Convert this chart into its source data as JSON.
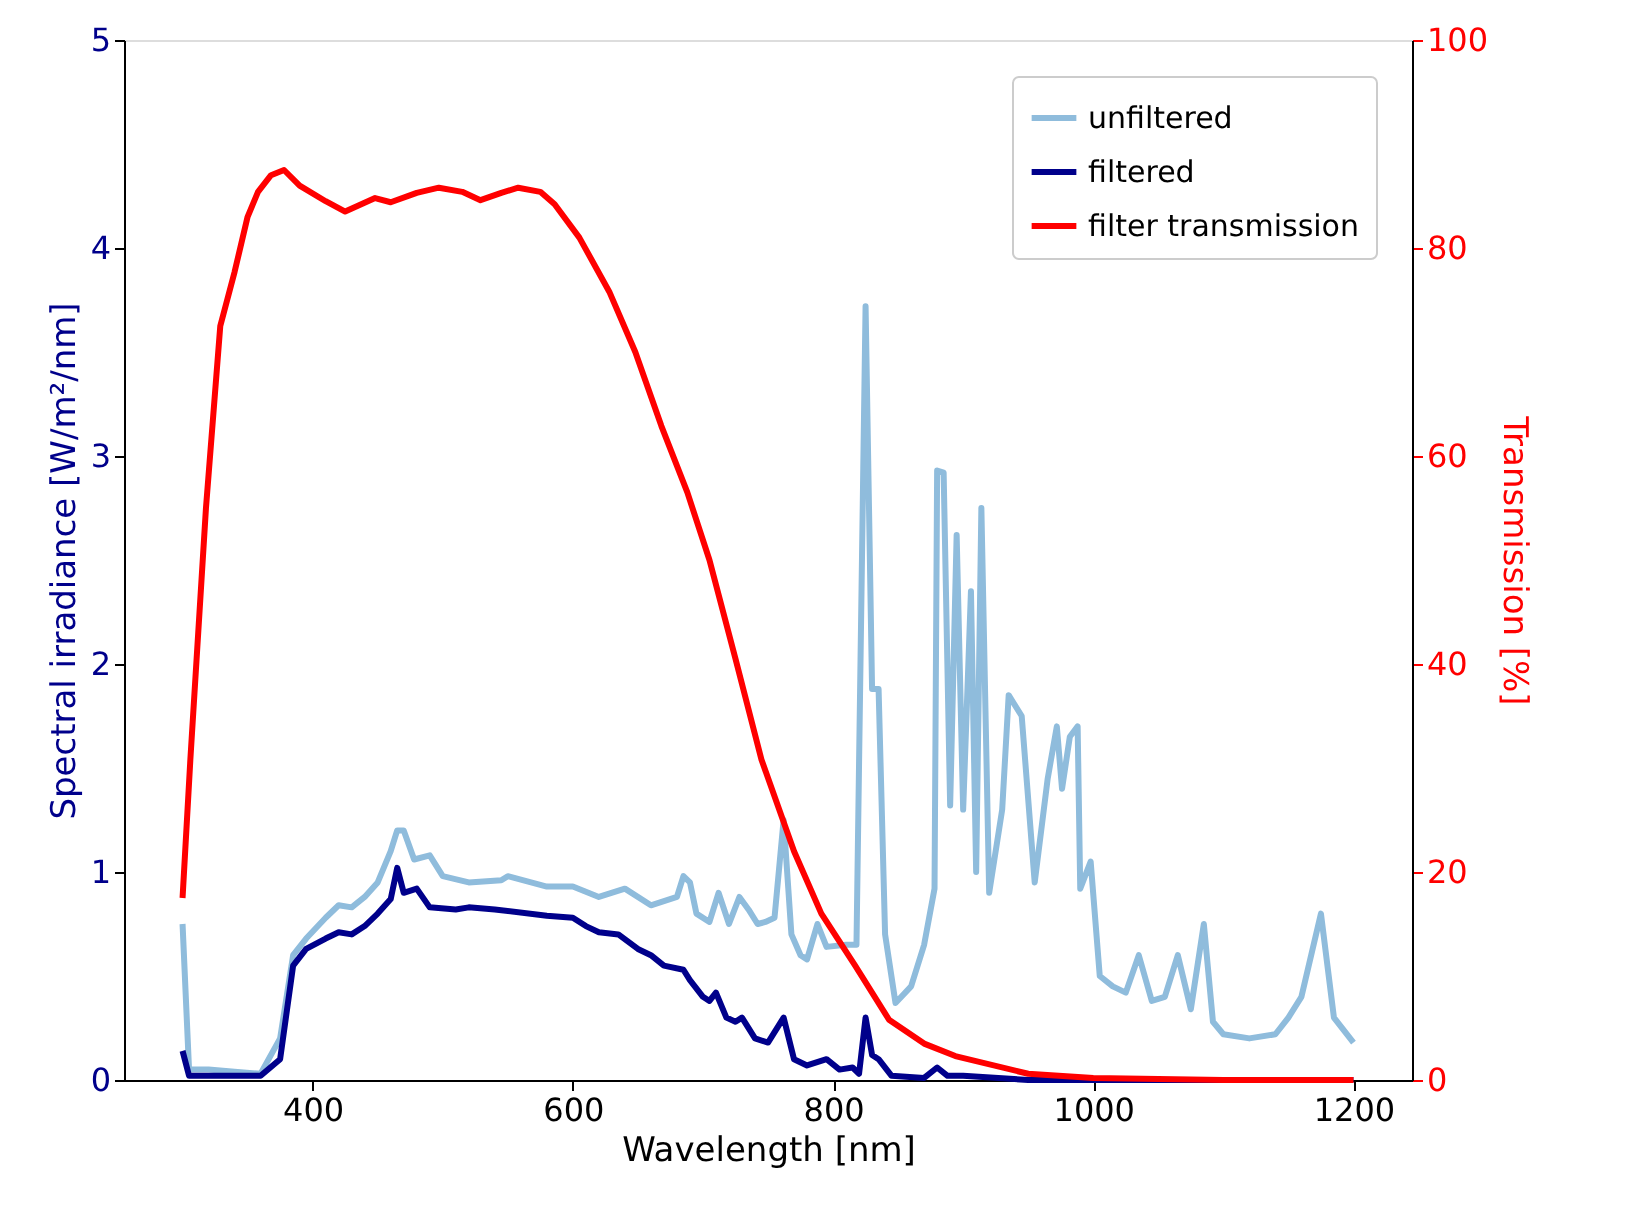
{
  "chart_data": {
    "type": "line",
    "xlabel": "Wavelength [nm]",
    "ylabel": "Spectral irradiance [W/m²/nm]",
    "y2label": "Transmission [%]",
    "xlim": [
      255,
      1245
    ],
    "xticks": [
      400,
      600,
      800,
      1000,
      1200
    ],
    "ylim": [
      0,
      5
    ],
    "yticks": [
      0,
      1,
      2,
      3,
      4,
      5
    ],
    "y2lim": [
      0,
      100
    ],
    "y2ticks": [
      0,
      20,
      40,
      60,
      80,
      100
    ],
    "grid": false,
    "legend": "top right",
    "series": [
      {
        "name": "unfiltered",
        "color": "#8fbcdc",
        "x": [
          300,
          305,
          320,
          340,
          360,
          375,
          385,
          395,
          410,
          420,
          430,
          440,
          450,
          460,
          465,
          470,
          478,
          490,
          500,
          520,
          545,
          550,
          580,
          600,
          620,
          640,
          660,
          670,
          680,
          685,
          690,
          695,
          705,
          712,
          720,
          728,
          735,
          742,
          748,
          755,
          762,
          768,
          775,
          780,
          788,
          795,
          810,
          818,
          825,
          830,
          835,
          840,
          848,
          860,
          870,
          878,
          880,
          885,
          890,
          895,
          900,
          906,
          910,
          914,
          920,
          930,
          935,
          945,
          955,
          965,
          972,
          976,
          982,
          988,
          990,
          998,
          1005,
          1015,
          1025,
          1035,
          1045,
          1055,
          1065,
          1075,
          1085,
          1092,
          1100,
          1120,
          1140,
          1150,
          1160,
          1175,
          1185,
          1200
        ],
        "values": [
          0.75,
          0.05,
          0.05,
          0.04,
          0.03,
          0.2,
          0.6,
          0.68,
          0.78,
          0.84,
          0.83,
          0.88,
          0.95,
          1.1,
          1.2,
          1.2,
          1.06,
          1.08,
          0.98,
          0.95,
          0.96,
          0.98,
          0.93,
          0.93,
          0.88,
          0.92,
          0.84,
          0.86,
          0.88,
          0.98,
          0.95,
          0.8,
          0.76,
          0.9,
          0.75,
          0.88,
          0.82,
          0.75,
          0.76,
          0.78,
          1.25,
          0.7,
          0.6,
          0.58,
          0.75,
          0.64,
          0.65,
          0.65,
          3.72,
          1.88,
          1.88,
          0.7,
          0.37,
          0.45,
          0.65,
          0.92,
          2.93,
          2.92,
          1.32,
          2.62,
          1.3,
          2.35,
          1.0,
          2.75,
          0.9,
          1.3,
          1.85,
          1.75,
          0.95,
          1.45,
          1.7,
          1.4,
          1.65,
          1.7,
          0.92,
          1.05,
          0.5,
          0.45,
          0.42,
          0.6,
          0.38,
          0.4,
          0.6,
          0.34,
          0.75,
          0.28,
          0.22,
          0.2,
          0.22,
          0.3,
          0.4,
          0.8,
          0.3,
          0.18
        ]
      },
      {
        "name": "filtered",
        "color": "#00008b",
        "x": [
          300,
          305,
          360,
          375,
          385,
          395,
          410,
          420,
          430,
          440,
          445,
          450,
          460,
          465,
          470,
          480,
          490,
          510,
          520,
          540,
          580,
          600,
          610,
          620,
          635,
          650,
          660,
          670,
          685,
          690,
          700,
          705,
          710,
          718,
          725,
          730,
          740,
          750,
          762,
          770,
          780,
          795,
          805,
          815,
          820,
          825,
          830,
          835,
          845,
          870,
          880,
          888,
          900,
          950,
          1200
        ],
        "values": [
          0.14,
          0.02,
          0.02,
          0.1,
          0.55,
          0.63,
          0.68,
          0.71,
          0.7,
          0.74,
          0.77,
          0.8,
          0.87,
          1.02,
          0.9,
          0.92,
          0.83,
          0.82,
          0.83,
          0.82,
          0.79,
          0.78,
          0.74,
          0.71,
          0.7,
          0.63,
          0.6,
          0.55,
          0.53,
          0.48,
          0.4,
          0.38,
          0.42,
          0.3,
          0.28,
          0.3,
          0.2,
          0.18,
          0.3,
          0.1,
          0.07,
          0.1,
          0.05,
          0.06,
          0.03,
          0.3,
          0.12,
          0.1,
          0.02,
          0.01,
          0.06,
          0.02,
          0.02,
          0.0,
          0.0
        ]
      },
      {
        "name": "filter transmission",
        "color": "#ff0000",
        "axis": "y2",
        "x": [
          300,
          306,
          318,
          329,
          340,
          350,
          358,
          368,
          378,
          390,
          410,
          425,
          448,
          460,
          480,
          497,
          515,
          529,
          545,
          558,
          575,
          586,
          605,
          628,
          648,
          668,
          688,
          705,
          725,
          745,
          770,
          791,
          817,
          843,
          870,
          894,
          950,
          1000,
          1100,
          1200
        ],
        "values": [
          17.5,
          30.8,
          55,
          72.5,
          77.7,
          83,
          85.4,
          87,
          87.5,
          86,
          84.5,
          83.5,
          84.8,
          84.4,
          85.3,
          85.8,
          85.4,
          84.6,
          85.3,
          85.8,
          85.4,
          84.2,
          81,
          75.8,
          70,
          62.9,
          56.5,
          50,
          40.5,
          30.8,
          22,
          16,
          11,
          5.8,
          3.5,
          2.3,
          0.6,
          0.2,
          0,
          0
        ]
      }
    ]
  }
}
